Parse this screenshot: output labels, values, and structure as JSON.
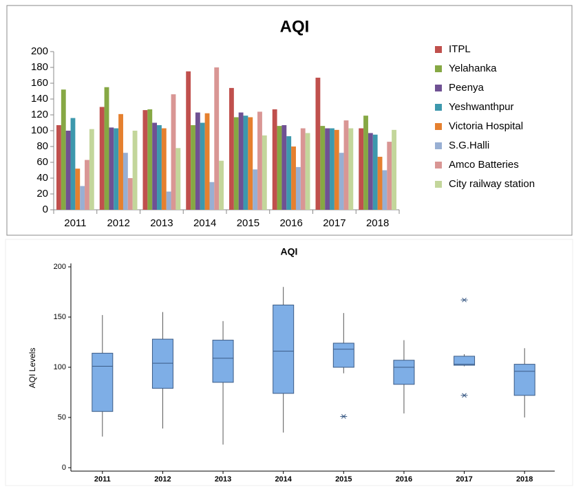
{
  "chart_data": [
    {
      "type": "bar",
      "title": "AQI",
      "categories": [
        "2011",
        "2012",
        "2013",
        "2014",
        "2015",
        "2016",
        "2017",
        "2018"
      ],
      "series": [
        {
          "name": "ITPL",
          "color": "#c0504d",
          "values": [
            107,
            130,
            126,
            175,
            154,
            127,
            167,
            103
          ]
        },
        {
          "name": "Yelahanka",
          "color": "#86a844",
          "values": [
            152,
            155,
            127,
            107,
            117,
            106,
            106,
            119
          ]
        },
        {
          "name": "Peenya",
          "color": "#6f5193",
          "values": [
            100,
            104,
            110,
            123,
            123,
            107,
            103,
            97
          ]
        },
        {
          "name": "Yeshwanthpur",
          "color": "#3d98ad",
          "values": [
            116,
            103,
            107,
            110,
            119,
            93,
            103,
            95
          ]
        },
        {
          "name": "Victoria Hospital",
          "color": "#e5802f",
          "values": [
            52,
            121,
            103,
            122,
            117,
            80,
            101,
            67
          ]
        },
        {
          "name": "S.G.Halli",
          "color": "#98afd3",
          "values": [
            30,
            72,
            23,
            35,
            51,
            54,
            72,
            50
          ]
        },
        {
          "name": "Amco Batteries",
          "color": "#d99694",
          "values": [
            63,
            40,
            146,
            180,
            124,
            103,
            113,
            86
          ]
        },
        {
          "name": "City railway station",
          "color": "#c3d69b",
          "values": [
            102,
            100,
            78,
            62,
            94,
            97,
            103,
            101
          ]
        }
      ],
      "ylim": [
        0,
        200
      ],
      "yticks": [
        0,
        20,
        40,
        60,
        80,
        100,
        120,
        140,
        160,
        180,
        200
      ],
      "legend": "right"
    },
    {
      "type": "box",
      "title": "AQI",
      "y_label": "AQI Levels",
      "categories": [
        "2011",
        "2012",
        "2013",
        "2014",
        "2015",
        "2016",
        "2017",
        "2018"
      ],
      "boxes": [
        {
          "min": 31,
          "q1": 56,
          "median": 101,
          "q3": 114,
          "max": 152,
          "outliers": []
        },
        {
          "min": 39,
          "q1": 79,
          "median": 104,
          "q3": 128,
          "max": 155,
          "outliers": []
        },
        {
          "min": 23,
          "q1": 85,
          "median": 109,
          "q3": 127,
          "max": 146,
          "outliers": []
        },
        {
          "min": 35,
          "q1": 74,
          "median": 116,
          "q3": 162,
          "max": 180,
          "outliers": []
        },
        {
          "min": 94,
          "q1": 100,
          "median": 118,
          "q3": 124,
          "max": 154,
          "outliers": [
            51
          ]
        },
        {
          "min": 54,
          "q1": 83,
          "median": 100,
          "q3": 107,
          "max": 127,
          "outliers": []
        },
        {
          "min": 101,
          "q1": 102,
          "median": 103,
          "q3": 111,
          "max": 113,
          "outliers": [
            167,
            72
          ]
        },
        {
          "min": 50,
          "q1": 72,
          "median": 96,
          "q3": 103,
          "max": 119,
          "outliers": []
        }
      ],
      "color": "#7eaee6",
      "ylim": [
        0,
        200
      ],
      "yticks": [
        0,
        50,
        100,
        150,
        200
      ]
    }
  ]
}
